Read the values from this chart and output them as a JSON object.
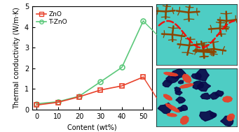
{
  "zno_x": [
    0,
    10,
    20,
    30,
    40,
    50
  ],
  "zno_y": [
    0.22,
    0.35,
    0.62,
    0.95,
    1.15,
    1.58
  ],
  "tzno_x": [
    0,
    10,
    20,
    30,
    40,
    50
  ],
  "tzno_y": [
    0.28,
    0.38,
    0.65,
    1.35,
    2.05,
    4.3
  ],
  "zno_color": "#e8412a",
  "tzno_color": "#5bc87a",
  "xlabel": "Content (wt%)",
  "ylabel": "Thermal conductivity (W/m·K)",
  "xlim": [
    -2,
    54
  ],
  "ylim": [
    0,
    5
  ],
  "yticks": [
    0,
    1,
    2,
    3,
    4,
    5
  ],
  "xticks": [
    0,
    10,
    20,
    30,
    40,
    50
  ],
  "legend_zno": "ZnO",
  "legend_tzno": "T-ZnO",
  "img_bg": "#4ecdc4"
}
